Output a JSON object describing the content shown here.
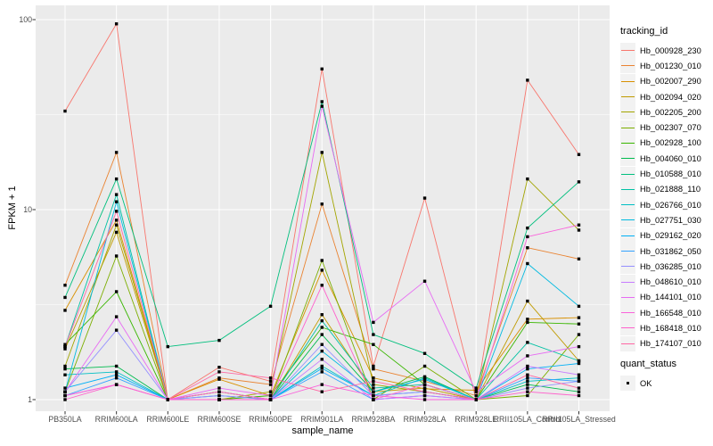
{
  "chart_data": {
    "type": "line",
    "title": "",
    "x_axis": {
      "title": "sample_name",
      "categories": [
        "PB350LA",
        "RRIM600LA",
        "RRIM600LE",
        "RRIM600SE",
        "RRIM600PE",
        "RRIM901LA",
        "RRIM928BA",
        "RRIM928LA",
        "RRIM928LE",
        "RRII105LA_Control",
        "RRII105LA_Stressed"
      ]
    },
    "y_axis": {
      "title": "FPKM + 1",
      "scale": "log10",
      "tick_values": [
        1,
        10,
        100
      ],
      "tick_labels": [
        "1",
        "10",
        "100"
      ],
      "range": [
        1,
        100
      ],
      "minor_gridline_values": [
        3.1623,
        31.623
      ]
    },
    "legend": {
      "series_title": "tracking_id",
      "quant_title": "quant_status",
      "quant_items": [
        {
          "label": "OK",
          "marker": "filled-black-square"
        }
      ],
      "position": "right"
    },
    "style": {
      "panel_bg": "#EBEBEB",
      "grid_color": "#FFFFFF",
      "tick_label_color": "#4D4D4D",
      "tick_color": "#333333",
      "key_bg": "#F2F2F2",
      "point_color": "#000000"
    },
    "series": [
      {
        "name": "Hb_000928_230",
        "color": "#F8766D",
        "values": [
          33,
          95,
          1.0,
          1.48,
          1.25,
          55,
          1.5,
          11.5,
          1.0,
          48,
          19.5
        ]
      },
      {
        "name": "Hb_001230_010",
        "color": "#EA8331",
        "values": [
          4.0,
          20,
          1.0,
          1.3,
          1.2,
          10.7,
          1.45,
          1.25,
          1.05,
          6.3,
          5.5
        ]
      },
      {
        "name": "Hb_002007_290",
        "color": "#D89000",
        "values": [
          2.95,
          8.8,
          1.0,
          1.28,
          1.05,
          4.8,
          1.3,
          1.14,
          1.12,
          2.65,
          2.7
        ]
      },
      {
        "name": "Hb_002094_020",
        "color": "#C09B00",
        "values": [
          1.85,
          7.6,
          1.0,
          1.1,
          1.0,
          2.8,
          1.1,
          1.15,
          1.0,
          3.3,
          1.6
        ]
      },
      {
        "name": "Hb_002205_200",
        "color": "#A3A500",
        "values": [
          1.5,
          8.3,
          1.0,
          1.0,
          1.1,
          20,
          1.2,
          1.1,
          1.0,
          14.5,
          7.8
        ]
      },
      {
        "name": "Hb_002307_070",
        "color": "#7CAE00",
        "values": [
          1.1,
          5.7,
          1.0,
          1.1,
          1.0,
          5.4,
          1.0,
          1.5,
          1.0,
          1.05,
          2.2
        ]
      },
      {
        "name": "Hb_002928_100",
        "color": "#39B600",
        "values": [
          1.95,
          3.7,
          1.0,
          1.0,
          1.05,
          2.4,
          1.95,
          1.2,
          1.0,
          2.55,
          2.5
        ]
      },
      {
        "name": "Hb_004060_010",
        "color": "#00BB4E",
        "values": [
          1.45,
          1.5,
          1.0,
          1.0,
          1.0,
          2.2,
          1.1,
          1.32,
          1.0,
          1.2,
          1.1
        ]
      },
      {
        "name": "Hb_010588_010",
        "color": "#00BF7D",
        "values": [
          3.45,
          14.5,
          1.9,
          2.05,
          3.1,
          37,
          2.2,
          1.75,
          1.15,
          8.0,
          14
        ]
      },
      {
        "name": "Hb_021888_110",
        "color": "#00C1A3",
        "values": [
          1.9,
          12,
          1.0,
          1.0,
          1.0,
          2.6,
          1.15,
          1.2,
          1.0,
          2.0,
          1.6
        ]
      },
      {
        "name": "Hb_026766_010",
        "color": "#00BFC4",
        "values": [
          1.35,
          1.4,
          1.0,
          1.0,
          1.0,
          1.5,
          1.05,
          1.3,
          1.0,
          1.25,
          1.3
        ]
      },
      {
        "name": "Hb_027751_030",
        "color": "#00BAE0",
        "values": [
          1.1,
          11,
          1.0,
          1.05,
          1.0,
          1.8,
          1.1,
          1.28,
          1.0,
          5.2,
          3.1
        ]
      },
      {
        "name": "Hb_029162_020",
        "color": "#00B0F6",
        "values": [
          1.15,
          1.35,
          1.0,
          1.0,
          1.0,
          1.46,
          1.05,
          1.1,
          1.0,
          1.45,
          1.55
        ]
      },
      {
        "name": "Hb_031862_050",
        "color": "#35A2FF",
        "values": [
          1.05,
          1.3,
          1.0,
          1.0,
          1.0,
          1.4,
          1.0,
          1.05,
          1.0,
          1.3,
          1.25
        ]
      },
      {
        "name": "Hb_036285_010",
        "color": "#9590FF",
        "values": [
          1.1,
          2.32,
          1.0,
          1.05,
          1.0,
          1.95,
          1.05,
          1.1,
          1.0,
          1.15,
          1.25
        ]
      },
      {
        "name": "Hb_048610_010",
        "color": "#C77CFF",
        "values": [
          1.05,
          1.2,
          1.0,
          1.0,
          1.0,
          1.63,
          1.0,
          1.05,
          1.0,
          1.5,
          1.35
        ]
      },
      {
        "name": "Hb_144101_010",
        "color": "#E76BF3",
        "values": [
          1.1,
          2.73,
          1.0,
          1.15,
          1.05,
          35,
          2.55,
          4.2,
          1.1,
          1.7,
          1.9
        ]
      },
      {
        "name": "Hb_166548_010",
        "color": "#FA62DB",
        "values": [
          1.05,
          1.2,
          1.0,
          1.1,
          1.0,
          1.2,
          1.05,
          1.0,
          1.0,
          7.2,
          8.3
        ]
      },
      {
        "name": "Hb_168418_010",
        "color": "#FF61CC",
        "values": [
          1.0,
          1.2,
          1.0,
          1.0,
          1.0,
          4.0,
          1.0,
          1.2,
          1.0,
          1.1,
          1.05
        ]
      },
      {
        "name": "Hb_174107_010",
        "color": "#FF67A4",
        "values": [
          1.9,
          9.8,
          1.0,
          1.4,
          1.3,
          1.1,
          1.25,
          1.1,
          1.0,
          1.35,
          1.15
        ]
      }
    ]
  }
}
